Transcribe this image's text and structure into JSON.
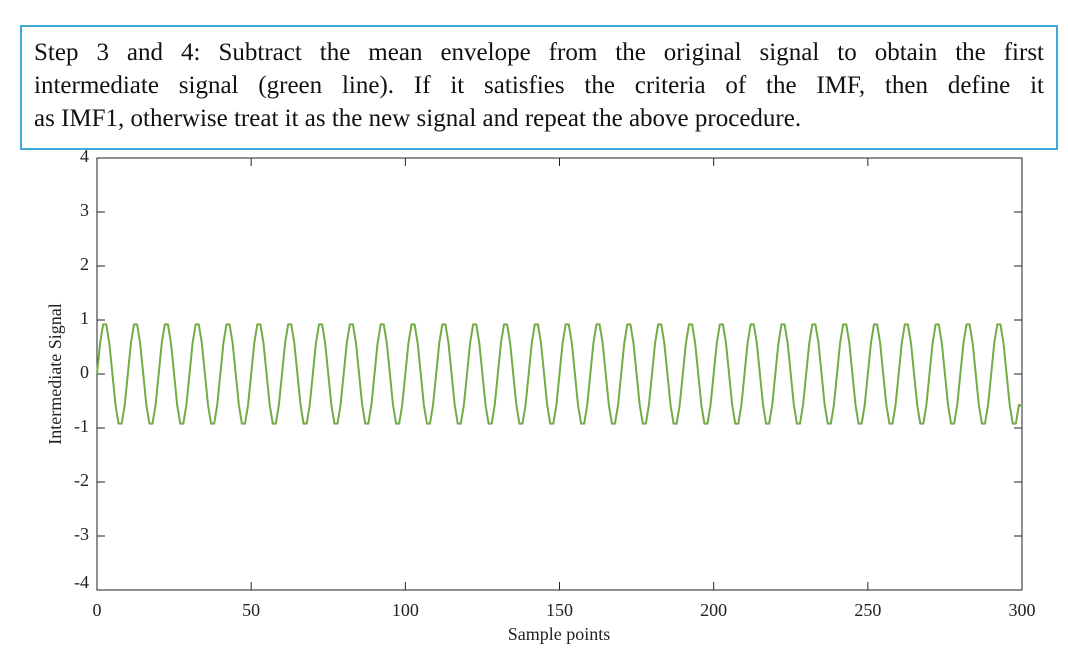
{
  "chart_data": {
    "type": "line",
    "annotation_lines": [
      "Step 3 and 4: Subtract the mean envelope from the original signal to obtain the first",
      "intermediate signal (green line). If it satisfies the criteria of the IMF, then define it",
      "as IMF1, otherwise treat it as the new signal and repeat the above procedure."
    ],
    "xlabel": "Sample points",
    "ylabel": "Intermediate Signal",
    "xlim": [
      0,
      300
    ],
    "ylim": [
      -4,
      4
    ],
    "xticks": [
      0,
      50,
      100,
      150,
      200,
      250,
      300
    ],
    "yticks": [
      -4,
      -3,
      -2,
      -1,
      0,
      1,
      2,
      3,
      4
    ],
    "x": [
      0,
      1,
      2,
      3,
      4,
      5,
      6,
      7,
      8,
      9,
      10,
      11,
      12,
      13,
      14,
      15,
      16,
      17,
      18,
      19,
      20,
      21,
      22,
      23,
      24,
      25,
      26,
      27,
      28,
      29,
      30,
      31,
      32,
      33,
      34,
      35,
      36,
      37,
      38,
      39,
      40,
      41,
      42,
      43,
      44,
      45,
      46,
      47,
      48,
      49,
      50,
      51,
      52,
      53,
      54,
      55,
      56,
      57,
      58,
      59,
      60,
      61,
      62,
      63,
      64,
      65,
      66,
      67,
      68,
      69,
      70,
      71,
      72,
      73,
      74,
      75,
      76,
      77,
      78,
      79,
      80,
      81,
      82,
      83,
      84,
      85,
      86,
      87,
      88,
      89,
      90,
      91,
      92,
      93,
      94,
      95,
      96,
      97,
      98,
      99,
      100,
      101,
      102,
      103,
      104,
      105,
      106,
      107,
      108,
      109,
      110,
      111,
      112,
      113,
      114,
      115,
      116,
      117,
      118,
      119,
      120,
      121,
      122,
      123,
      124,
      125,
      126,
      127,
      128,
      129,
      130,
      131,
      132,
      133,
      134,
      135,
      136,
      137,
      138,
      139,
      140,
      141,
      142,
      143,
      144,
      145,
      146,
      147,
      148,
      149,
      150,
      151,
      152,
      153,
      154,
      155,
      156,
      157,
      158,
      159,
      160,
      161,
      162,
      163,
      164,
      165,
      166,
      167,
      168,
      169,
      170,
      171,
      172,
      173,
      174,
      175,
      176,
      177,
      178,
      179,
      180,
      181,
      182,
      183,
      184,
      185,
      186,
      187,
      188,
      189,
      190,
      191,
      192,
      193,
      194,
      195,
      196,
      197,
      198,
      199,
      200,
      201,
      202,
      203,
      204,
      205,
      206,
      207,
      208,
      209,
      210,
      211,
      212,
      213,
      214,
      215,
      216,
      217,
      218,
      219,
      220,
      221,
      222,
      223,
      224,
      225,
      226,
      227,
      228,
      229,
      230,
      231,
      232,
      233,
      234,
      235,
      236,
      237,
      238,
      239,
      240,
      241,
      242,
      243,
      244,
      245,
      246,
      247,
      248,
      249,
      250,
      251,
      252,
      253,
      254,
      255,
      256,
      257,
      258,
      259,
      260,
      261,
      262,
      263,
      264,
      265,
      266,
      267,
      268,
      269,
      270,
      271,
      272,
      273,
      274,
      275,
      276,
      277,
      278,
      279,
      280,
      281,
      282,
      283,
      284,
      285,
      286,
      287,
      288,
      289,
      290,
      291,
      292,
      293,
      294,
      295,
      296,
      297,
      298,
      299,
      300
    ],
    "series": [
      {
        "color": "#70ad47",
        "values": [
          0,
          0.57,
          0.92,
          0.92,
          0.57,
          0,
          -0.57,
          -0.92,
          -0.92,
          -0.57,
          0,
          0.57,
          0.92,
          0.92,
          0.57,
          0,
          -0.57,
          -0.92,
          -0.92,
          -0.57,
          0,
          0.57,
          0.92,
          0.92,
          0.57,
          0,
          -0.57,
          -0.92,
          -0.92,
          -0.57,
          0,
          0.57,
          0.92,
          0.92,
          0.57,
          0,
          -0.57,
          -0.92,
          -0.92,
          -0.57,
          0,
          0.57,
          0.92,
          0.92,
          0.57,
          0,
          -0.57,
          -0.92,
          -0.92,
          -0.57,
          0,
          0.57,
          0.92,
          0.92,
          0.57,
          0,
          -0.57,
          -0.92,
          -0.92,
          -0.57,
          0,
          0.57,
          0.92,
          0.92,
          0.57,
          0,
          -0.57,
          -0.92,
          -0.92,
          -0.57,
          0,
          0.57,
          0.92,
          0.92,
          0.57,
          0,
          -0.57,
          -0.92,
          -0.92,
          -0.57,
          0,
          0.57,
          0.92,
          0.92,
          0.57,
          0,
          -0.57,
          -0.92,
          -0.92,
          -0.57,
          0,
          0.57,
          0.92,
          0.92,
          0.57,
          0,
          -0.57,
          -0.92,
          -0.92,
          -0.57,
          0,
          0.57,
          0.92,
          0.92,
          0.57,
          0,
          -0.57,
          -0.92,
          -0.92,
          -0.57,
          0,
          0.57,
          0.92,
          0.92,
          0.57,
          0,
          -0.57,
          -0.92,
          -0.92,
          -0.57,
          0,
          0.57,
          0.92,
          0.92,
          0.57,
          0,
          -0.57,
          -0.92,
          -0.92,
          -0.57,
          0,
          0.57,
          0.92,
          0.92,
          0.57,
          0,
          -0.57,
          -0.92,
          -0.92,
          -0.57,
          0,
          0.57,
          0.92,
          0.92,
          0.57,
          0,
          -0.57,
          -0.92,
          -0.92,
          -0.57,
          0,
          0.57,
          0.92,
          0.92,
          0.57,
          0,
          -0.57,
          -0.92,
          -0.92,
          -0.57,
          0,
          0.57,
          0.92,
          0.92,
          0.57,
          0,
          -0.57,
          -0.92,
          -0.92,
          -0.57,
          0,
          0.57,
          0.92,
          0.92,
          0.57,
          0,
          -0.57,
          -0.92,
          -0.92,
          -0.57,
          0,
          0.57,
          0.92,
          0.92,
          0.57,
          0,
          -0.57,
          -0.92,
          -0.92,
          -0.57,
          0,
          0.57,
          0.92,
          0.92,
          0.57,
          0,
          -0.57,
          -0.92,
          -0.92,
          -0.57,
          0,
          0.57,
          0.92,
          0.92,
          0.57,
          0,
          -0.57,
          -0.92,
          -0.92,
          -0.57,
          0,
          0.57,
          0.92,
          0.92,
          0.57,
          0,
          -0.57,
          -0.92,
          -0.92,
          -0.57,
          0,
          0.57,
          0.92,
          0.92,
          0.57,
          0,
          -0.57,
          -0.92,
          -0.92,
          -0.57,
          0,
          0.57,
          0.92,
          0.92,
          0.57,
          0,
          -0.57,
          -0.92,
          -0.92,
          -0.57,
          0,
          0.57,
          0.92,
          0.92,
          0.57,
          0,
          -0.57,
          -0.92,
          -0.92,
          -0.57,
          0,
          0.57,
          0.92,
          0.92,
          0.57,
          0,
          -0.57,
          -0.92,
          -0.92,
          -0.57,
          0,
          0.57,
          0.92,
          0.92,
          0.57,
          0,
          -0.57,
          -0.92,
          -0.92,
          -0.57,
          0,
          0.57,
          0.92,
          0.92,
          0.57,
          0,
          -0.57,
          -0.92,
          -0.92,
          -0.57,
          0,
          0.57,
          0.92,
          0.92,
          0.57,
          0,
          -0.57,
          -0.92,
          -0.92,
          -0.57,
          0,
          0.57,
          0.92,
          0.92,
          0.57,
          0,
          -0.57,
          -0.92,
          -0.92,
          -0.57,
          -0.6
        ]
      }
    ]
  }
}
